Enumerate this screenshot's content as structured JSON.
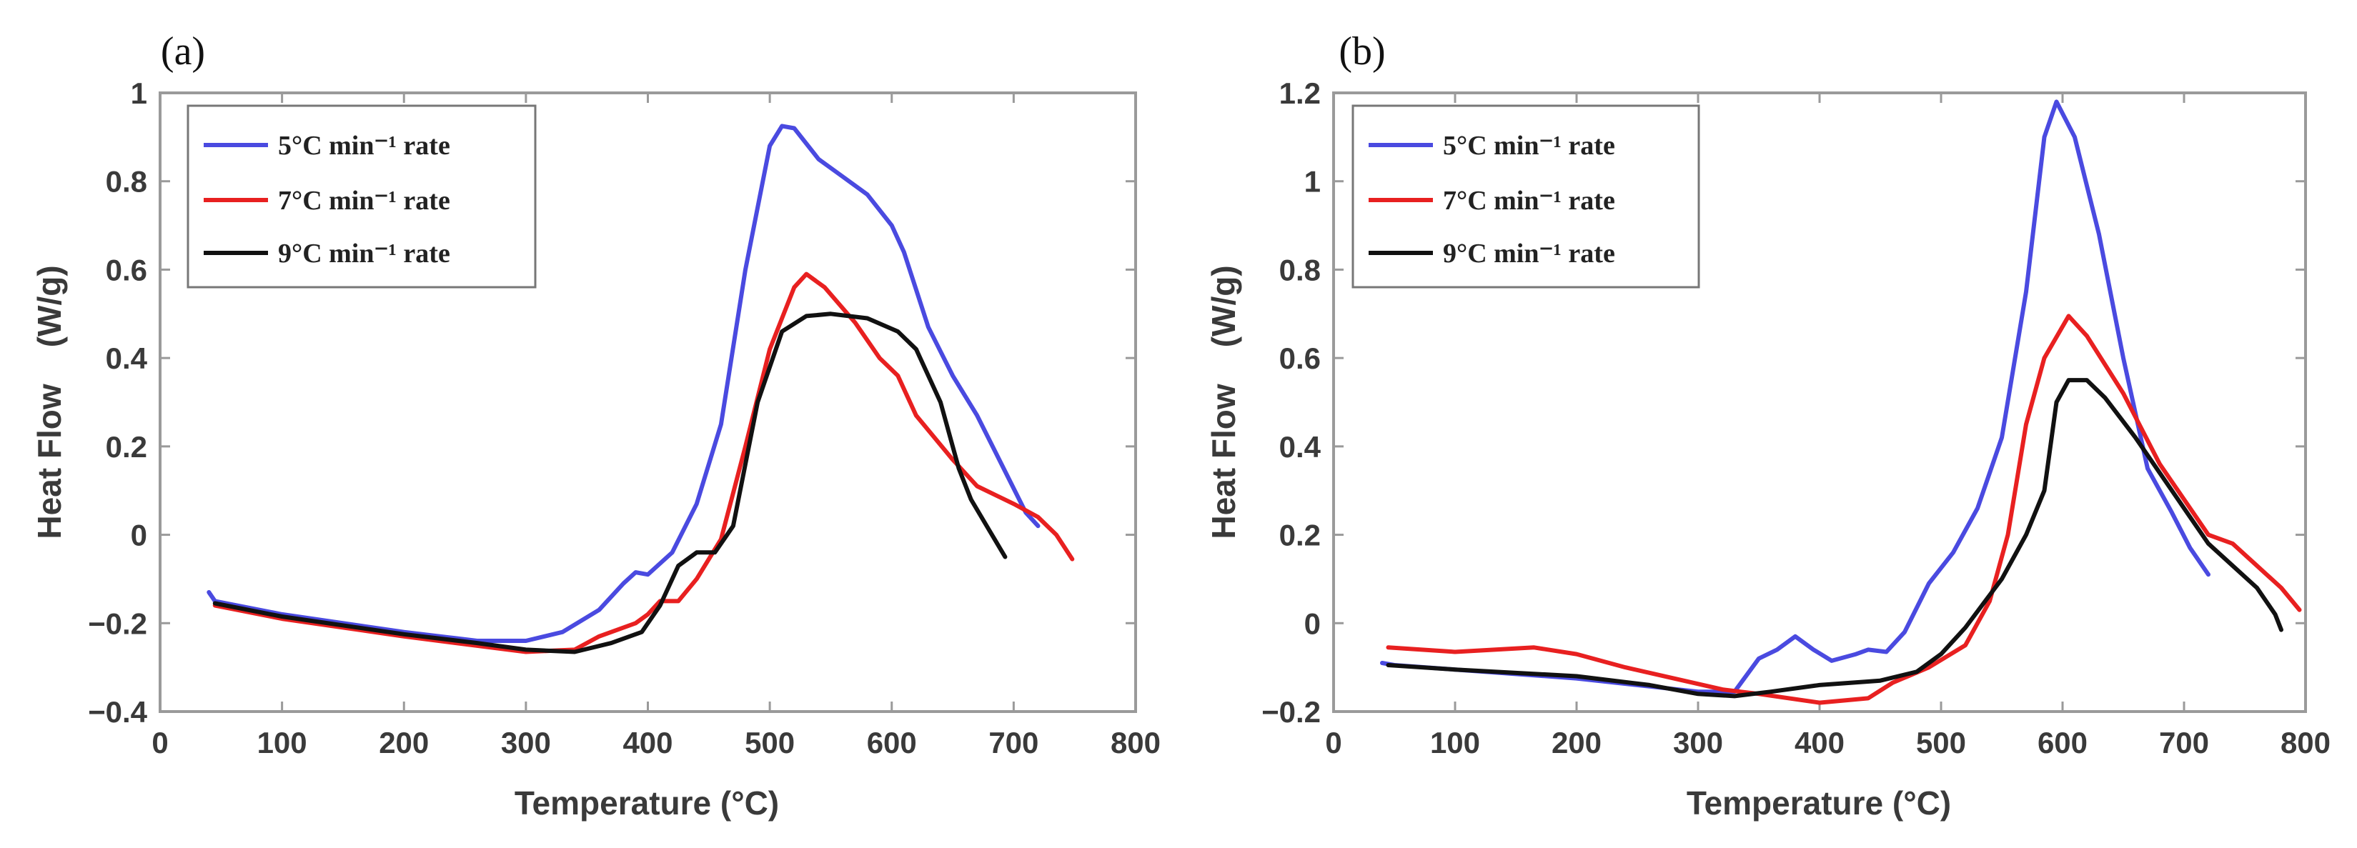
{
  "chart_data": [
    {
      "type": "line",
      "panel_label": "(a)",
      "xlabel": "Temperature (°C)",
      "ylabel": "Heat Flow    (W/g)",
      "xlim": [
        0,
        800
      ],
      "ylim": [
        -0.4,
        1
      ],
      "xticks": [
        0,
        100,
        200,
        300,
        400,
        500,
        600,
        700,
        800
      ],
      "xtick_labels": [
        "0",
        "100",
        "200",
        "300",
        "400",
        "500",
        "600",
        "700",
        "800"
      ],
      "yticks": [
        -0.4,
        -0.2,
        0,
        0.2,
        0.4,
        0.6,
        0.8,
        1
      ],
      "ytick_labels": [
        "−0.4",
        "−0.2",
        "0",
        "0.2",
        "0.4",
        "0.6",
        "0.8",
        "1"
      ],
      "grid": false,
      "legend_position": "top-left",
      "series": [
        {
          "name": "5°C min⁻¹  rate",
          "color": "#4a4ae0",
          "x": [
            40,
            45,
            100,
            200,
            260,
            300,
            330,
            360,
            380,
            390,
            400,
            420,
            440,
            460,
            480,
            500,
            510,
            520,
            540,
            560,
            580,
            600,
            610,
            630,
            650,
            670,
            690,
            710,
            720
          ],
          "y": [
            -0.13,
            -0.15,
            -0.18,
            -0.22,
            -0.24,
            -0.24,
            -0.22,
            -0.17,
            -0.11,
            -0.085,
            -0.09,
            -0.04,
            0.07,
            0.25,
            0.6,
            0.88,
            0.925,
            0.92,
            0.85,
            0.81,
            0.77,
            0.7,
            0.64,
            0.47,
            0.36,
            0.27,
            0.16,
            0.05,
            0.02
          ]
        },
        {
          "name": "7°C min⁻¹  rate",
          "color": "#e82020",
          "x": [
            45,
            100,
            200,
            300,
            340,
            360,
            390,
            400,
            410,
            425,
            440,
            460,
            480,
            500,
            520,
            530,
            545,
            570,
            590,
            605,
            620,
            650,
            670,
            700,
            720,
            735,
            748
          ],
          "y": [
            -0.16,
            -0.19,
            -0.23,
            -0.265,
            -0.26,
            -0.23,
            -0.2,
            -0.18,
            -0.15,
            -0.15,
            -0.1,
            -0.01,
            0.2,
            0.42,
            0.56,
            0.59,
            0.56,
            0.48,
            0.4,
            0.36,
            0.27,
            0.17,
            0.11,
            0.07,
            0.04,
            0.0,
            -0.055
          ]
        },
        {
          "name": "9°C min⁻¹  rate",
          "color": "#111111",
          "x": [
            45,
            100,
            200,
            260,
            300,
            340,
            370,
            395,
            410,
            425,
            440,
            455,
            470,
            490,
            510,
            530,
            550,
            580,
            605,
            620,
            640,
            655,
            665,
            680,
            693
          ],
          "y": [
            -0.155,
            -0.185,
            -0.225,
            -0.245,
            -0.26,
            -0.265,
            -0.245,
            -0.22,
            -0.16,
            -0.07,
            -0.04,
            -0.04,
            0.02,
            0.3,
            0.46,
            0.495,
            0.5,
            0.49,
            0.46,
            0.42,
            0.3,
            0.15,
            0.08,
            0.01,
            -0.05
          ]
        }
      ]
    },
    {
      "type": "line",
      "panel_label": "(b)",
      "xlabel": "Temperature (°C)",
      "ylabel": "Heat Flow    (W/g)",
      "xlim": [
        0,
        800
      ],
      "ylim": [
        -0.2,
        1.2
      ],
      "xticks": [
        0,
        100,
        200,
        300,
        400,
        500,
        600,
        700,
        800
      ],
      "xtick_labels": [
        "0",
        "100",
        "200",
        "300",
        "400",
        "500",
        "600",
        "700",
        "800"
      ],
      "yticks": [
        -0.2,
        0,
        0.2,
        0.4,
        0.6,
        0.8,
        1,
        1.2
      ],
      "ytick_labels": [
        "−0.2",
        "0",
        "0.2",
        "0.4",
        "0.6",
        "0.8",
        "1",
        "1.2"
      ],
      "grid": false,
      "legend_position": "top-left",
      "series": [
        {
          "name": "5°C min⁻¹  rate",
          "color": "#4a4ae0",
          "x": [
            40,
            50,
            100,
            200,
            300,
            330,
            350,
            365,
            380,
            395,
            410,
            430,
            440,
            455,
            470,
            490,
            510,
            530,
            550,
            570,
            585,
            595,
            610,
            630,
            650,
            670,
            690,
            705,
            720
          ],
          "y": [
            -0.09,
            -0.095,
            -0.105,
            -0.125,
            -0.155,
            -0.155,
            -0.08,
            -0.06,
            -0.03,
            -0.06,
            -0.085,
            -0.07,
            -0.06,
            -0.065,
            -0.02,
            0.09,
            0.16,
            0.26,
            0.42,
            0.75,
            1.1,
            1.18,
            1.1,
            0.88,
            0.6,
            0.35,
            0.25,
            0.17,
            0.11
          ]
        },
        {
          "name": "7°C min⁻¹  rate",
          "color": "#e82020",
          "x": [
            45,
            100,
            165,
            200,
            240,
            280,
            320,
            350,
            400,
            440,
            460,
            490,
            520,
            540,
            555,
            570,
            585,
            605,
            620,
            650,
            680,
            700,
            720,
            740,
            760,
            780,
            795
          ],
          "y": [
            -0.055,
            -0.065,
            -0.055,
            -0.07,
            -0.1,
            -0.125,
            -0.15,
            -0.16,
            -0.18,
            -0.17,
            -0.135,
            -0.1,
            -0.05,
            0.05,
            0.2,
            0.45,
            0.6,
            0.695,
            0.65,
            0.52,
            0.36,
            0.28,
            0.2,
            0.18,
            0.13,
            0.08,
            0.03
          ]
        },
        {
          "name": "9°C min⁻¹  rate",
          "color": "#111111",
          "x": [
            45,
            100,
            200,
            260,
            300,
            330,
            360,
            400,
            450,
            480,
            500,
            520,
            550,
            570,
            585,
            595,
            605,
            620,
            635,
            660,
            690,
            720,
            740,
            760,
            775,
            780
          ],
          "y": [
            -0.095,
            -0.105,
            -0.12,
            -0.14,
            -0.16,
            -0.165,
            -0.155,
            -0.14,
            -0.13,
            -0.11,
            -0.07,
            -0.01,
            0.1,
            0.2,
            0.3,
            0.5,
            0.55,
            0.55,
            0.51,
            0.42,
            0.3,
            0.18,
            0.13,
            0.08,
            0.02,
            -0.015
          ]
        }
      ]
    }
  ]
}
